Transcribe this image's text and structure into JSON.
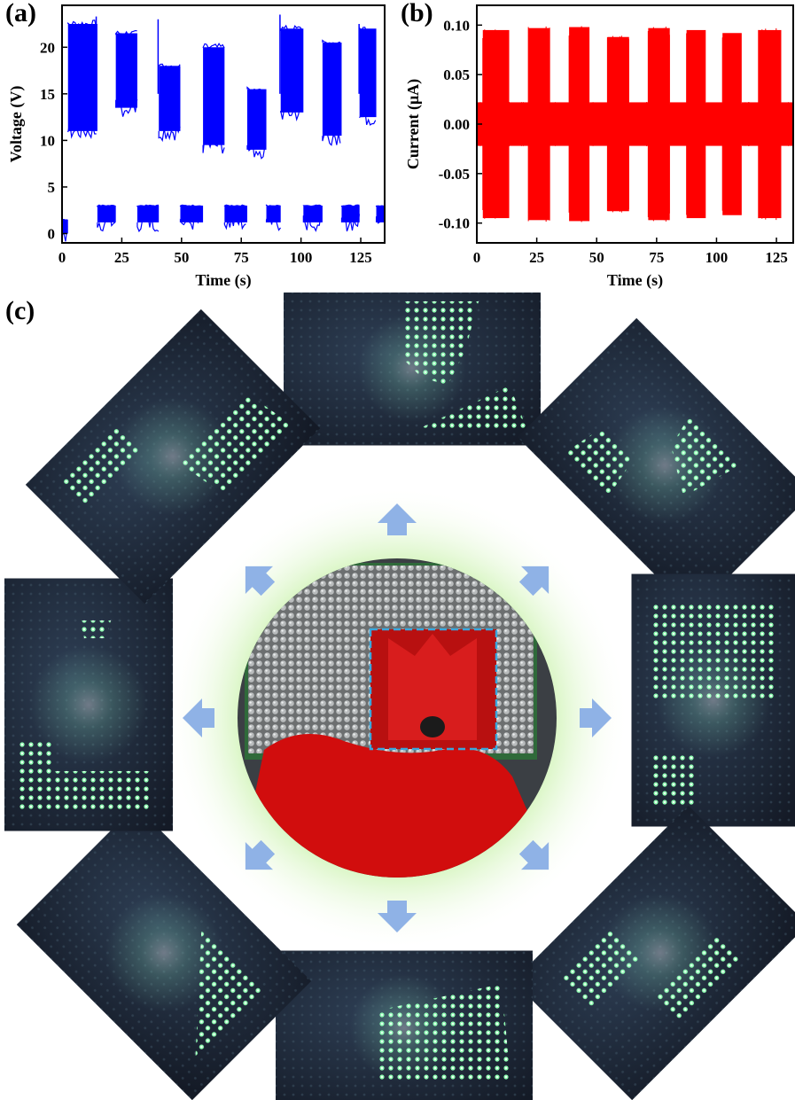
{
  "panels": {
    "a": "(a)",
    "b": "(b)",
    "c": "(c)"
  },
  "chart_data": [
    {
      "type": "line",
      "panel": "(a)",
      "xlabel": "Time (s)",
      "ylabel": "Voltage (V)",
      "xlim": [
        0,
        135
      ],
      "ylim": [
        -1,
        24.5
      ],
      "xticks": [
        "0",
        "25",
        "50",
        "75",
        "100",
        "125"
      ],
      "yticks": [
        "0",
        "5",
        "10",
        "15",
        "20"
      ],
      "color": "#0000ff",
      "pulses": [
        {
          "start": 0,
          "end": 2.5,
          "level_low": 0,
          "level_high": 1.5
        },
        {
          "start": 2.5,
          "end": 14.8,
          "level_low": 11,
          "level_high": 22.5
        },
        {
          "start": 14.8,
          "end": 22.5,
          "level_low": 1.2,
          "level_high": 3
        },
        {
          "start": 22.5,
          "end": 31.5,
          "level_low": 13.5,
          "level_high": 21.5
        },
        {
          "start": 31.5,
          "end": 40.5,
          "level_low": 1.2,
          "level_high": 3
        },
        {
          "start": 40.5,
          "end": 49.5,
          "level_low": 11,
          "level_high": 18
        },
        {
          "start": 49.5,
          "end": 59,
          "level_low": 1.2,
          "level_high": 3
        },
        {
          "start": 59,
          "end": 68,
          "level_low": 9.5,
          "level_high": 20
        },
        {
          "start": 68,
          "end": 77.5,
          "level_low": 1.2,
          "level_high": 3
        },
        {
          "start": 77.5,
          "end": 85.5,
          "level_low": 9,
          "level_high": 15.5
        },
        {
          "start": 85.5,
          "end": 91.5,
          "level_low": 1.2,
          "level_high": 3
        },
        {
          "start": 91.5,
          "end": 101,
          "level_low": 13,
          "level_high": 22
        },
        {
          "start": 101,
          "end": 109,
          "level_low": 1.2,
          "level_high": 3
        },
        {
          "start": 109,
          "end": 117,
          "level_low": 10.5,
          "level_high": 20.5
        },
        {
          "start": 117,
          "end": 124.5,
          "level_low": 1.2,
          "level_high": 3
        },
        {
          "start": 124.5,
          "end": 131.5,
          "level_low": 12.5,
          "level_high": 22
        },
        {
          "start": 131.5,
          "end": 135,
          "level_low": 1.2,
          "level_high": 3
        }
      ],
      "spikes": [
        {
          "x": 14.3,
          "y": 23.3
        },
        {
          "x": 40.2,
          "y": 23
        },
        {
          "x": 91.2,
          "y": 23.5
        },
        {
          "x": 124.3,
          "y": 22.5
        }
      ]
    },
    {
      "type": "line",
      "panel": "(b)",
      "xlabel": "Time (s)",
      "ylabel": "Current (μA)",
      "xlim": [
        0,
        132
      ],
      "ylim": [
        -0.12,
        0.12
      ],
      "xticks": [
        "0",
        "25",
        "50",
        "75",
        "100",
        "125"
      ],
      "yticks": [
        "-0.10",
        "-0.05",
        "0.00",
        "0.05",
        "0.10"
      ],
      "color": "#ff0000",
      "pulses": [
        {
          "start": 0,
          "end": 2.5,
          "amplitude": 0.022
        },
        {
          "start": 2.5,
          "end": 13.5,
          "amplitude": 0.095
        },
        {
          "start": 13.5,
          "end": 21.5,
          "amplitude": 0.022
        },
        {
          "start": 21.5,
          "end": 30.5,
          "amplitude": 0.097
        },
        {
          "start": 30.5,
          "end": 38.5,
          "amplitude": 0.022
        },
        {
          "start": 38.5,
          "end": 47,
          "amplitude": 0.098
        },
        {
          "start": 47,
          "end": 54.5,
          "amplitude": 0.022
        },
        {
          "start": 54.5,
          "end": 63.5,
          "amplitude": 0.088
        },
        {
          "start": 63.5,
          "end": 71.5,
          "amplitude": 0.022
        },
        {
          "start": 71.5,
          "end": 80.5,
          "amplitude": 0.097
        },
        {
          "start": 80.5,
          "end": 87.5,
          "amplitude": 0.022
        },
        {
          "start": 87.5,
          "end": 95.5,
          "amplitude": 0.095
        },
        {
          "start": 95.5,
          "end": 102.5,
          "amplitude": 0.022
        },
        {
          "start": 102.5,
          "end": 110.5,
          "amplitude": 0.092
        },
        {
          "start": 110.5,
          "end": 117.5,
          "amplitude": 0.022
        },
        {
          "start": 117.5,
          "end": 127,
          "amplitude": 0.095
        },
        {
          "start": 127,
          "end": 132,
          "amplitude": 0.022
        }
      ]
    }
  ],
  "photo_panel": {
    "center_photo": "red garment over textile triboelectric LED array",
    "arrow_color": "#8fb2e6",
    "glow_color": "#b6ec8a",
    "led_color": "#7dffa0"
  }
}
